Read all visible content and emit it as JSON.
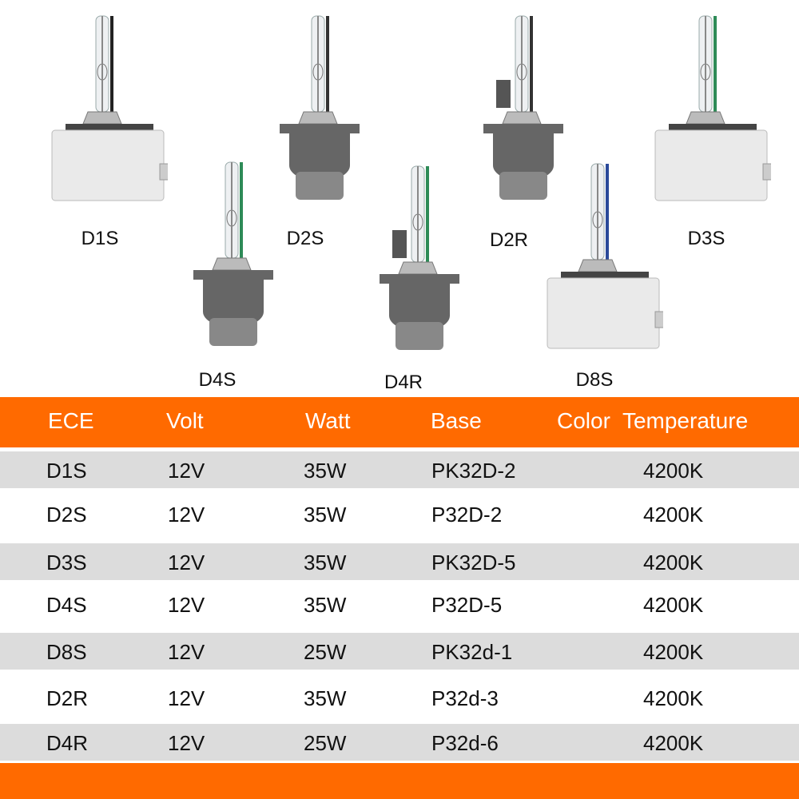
{
  "bulbs": [
    {
      "label": "D1S",
      "style": "ballast",
      "wire": "#222222"
    },
    {
      "label": "D2S",
      "style": "socket",
      "wire": "#333333"
    },
    {
      "label": "D2R",
      "style": "socket-shield",
      "wire": "#333333"
    },
    {
      "label": "D3S",
      "style": "ballast",
      "wire": "#2e8b57"
    },
    {
      "label": "D4S",
      "style": "socket",
      "wire": "#2e8b57"
    },
    {
      "label": "D4R",
      "style": "socket-shield",
      "wire": "#2e8b57"
    },
    {
      "label": "D8S",
      "style": "ballast",
      "wire": "#2b4a9a"
    }
  ],
  "table": {
    "headers": [
      "ECE",
      "Volt",
      "Watt",
      "Base",
      "Color  Temperature"
    ],
    "rows": [
      [
        "D1S",
        "12V",
        "35W",
        "PK32D-2",
        "4200K"
      ],
      [
        "D2S",
        "12V",
        "35W",
        "P32D-2",
        "4200K"
      ],
      [
        "D3S",
        "12V",
        "35W",
        "PK32D-5",
        "4200K"
      ],
      [
        "D4S",
        "12V",
        "35W",
        "P32D-5",
        "4200K"
      ],
      [
        "D8S",
        "12V",
        "25W",
        "PK32d-1",
        "4200K"
      ],
      [
        "D2R",
        "12V",
        "35W",
        "P32d-3",
        "4200K"
      ],
      [
        "D4R",
        "12V",
        "25W",
        "P32d-6",
        "4200K"
      ]
    ]
  },
  "colors": {
    "accent": "#ff6a00",
    "stripe": "#dcdcdc"
  }
}
